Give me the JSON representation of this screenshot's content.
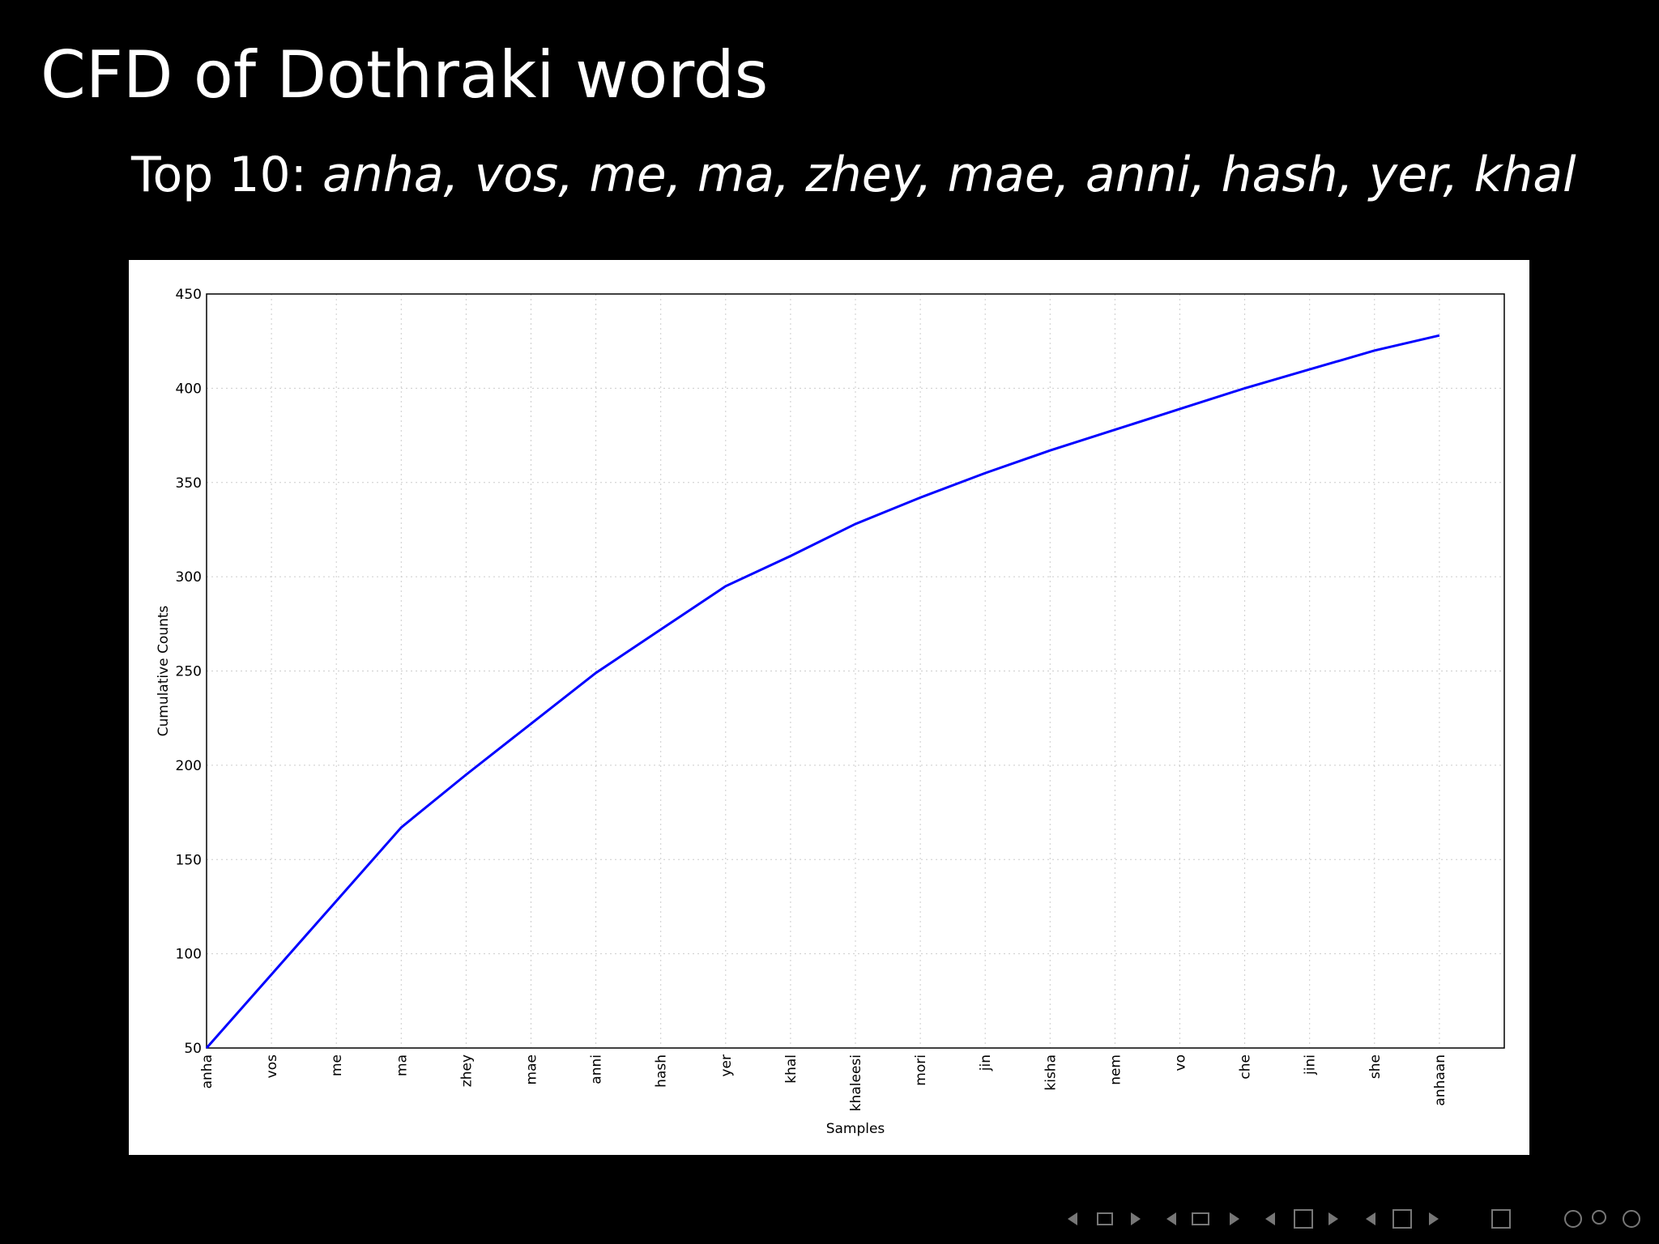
{
  "slide": {
    "title": "CFD of Dothraki words",
    "lead": "Top 10:",
    "words": "anha, vos, me, ma, zhey, mae, anni, hash, yer, khal"
  },
  "chart_data": {
    "type": "line",
    "categories": [
      "anha",
      "vos",
      "me",
      "ma",
      "zhey",
      "mae",
      "anni",
      "hash",
      "yer",
      "khal",
      "khaleesi",
      "mori",
      "jin",
      "kisha",
      "nem",
      "vo",
      "che",
      "jini",
      "she",
      "anhaan"
    ],
    "values": [
      50,
      89,
      128,
      167,
      195,
      222,
      249,
      272,
      295,
      311,
      328,
      342,
      355,
      367,
      378,
      389,
      400,
      410,
      420,
      428
    ],
    "color": "#0000ff",
    "ylim": [
      50,
      450
    ],
    "yticks": [
      50,
      100,
      150,
      200,
      250,
      300,
      350,
      400,
      450
    ],
    "x_label": "Samples",
    "y_label": "Cumulative Counts",
    "grid": true
  }
}
